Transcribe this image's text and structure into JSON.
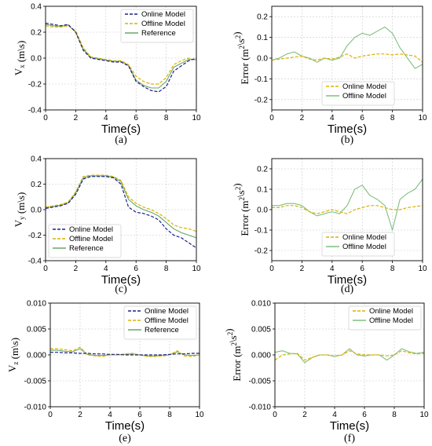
{
  "colors": {
    "online": "#1f1f8c",
    "offline": "#d9b300",
    "reference": "#6aa86a",
    "error_online": "#d9b300",
    "error_offline": "#7fbf7f"
  },
  "chart_data": [
    {
      "id": "a",
      "type": "line",
      "caption": "(a)",
      "xlabel": "Time(s)",
      "ylabel": "V_x (m\\s)",
      "xlim": [
        0,
        10
      ],
      "ylim": [
        -0.4,
        0.4
      ],
      "xticks": [
        0,
        2,
        4,
        6,
        8,
        10
      ],
      "yticks": [
        -0.4,
        -0.2,
        0.0,
        0.2,
        0.4
      ],
      "ytick_labels": [
        "-0.4",
        "-0.2",
        "0.0",
        "0.2",
        "0.4"
      ],
      "grid": true,
      "legend_position": "top-right",
      "series": [
        {
          "name": "Online Model",
          "style": "dashed",
          "color_key": "online",
          "x": [
            0,
            0.5,
            1,
            1.5,
            2,
            2.5,
            3,
            3.5,
            4,
            4.5,
            5,
            5.5,
            6,
            6.5,
            7,
            7.5,
            8,
            8.5,
            9,
            9.5,
            10
          ],
          "y": [
            0.27,
            0.26,
            0.25,
            0.26,
            0.2,
            0.06,
            0.0,
            -0.01,
            -0.02,
            -0.03,
            -0.03,
            -0.06,
            -0.18,
            -0.22,
            -0.25,
            -0.26,
            -0.22,
            -0.1,
            -0.06,
            -0.02,
            0.0
          ]
        },
        {
          "name": "Offline Model",
          "style": "dashed",
          "color_key": "offline",
          "x": [
            0,
            0.5,
            1,
            1.5,
            2,
            2.5,
            3,
            3.5,
            4,
            4.5,
            5,
            5.5,
            6,
            6.5,
            7,
            7.5,
            8,
            8.5,
            9,
            9.5,
            10
          ],
          "y": [
            0.25,
            0.24,
            0.24,
            0.25,
            0.21,
            0.08,
            0.01,
            0.0,
            -0.01,
            -0.02,
            -0.02,
            -0.05,
            -0.14,
            -0.18,
            -0.2,
            -0.2,
            -0.15,
            -0.05,
            -0.02,
            0.0,
            -0.02
          ]
        },
        {
          "name": "Reference",
          "style": "solid",
          "color_key": "reference",
          "x": [
            0,
            0.5,
            1,
            1.5,
            2,
            2.5,
            3,
            3.5,
            4,
            4.5,
            5,
            5.5,
            6,
            6.5,
            7,
            7.5,
            8,
            8.5,
            9,
            9.5,
            10
          ],
          "y": [
            0.26,
            0.25,
            0.245,
            0.255,
            0.2,
            0.07,
            0.005,
            -0.005,
            -0.015,
            -0.025,
            -0.025,
            -0.055,
            -0.17,
            -0.21,
            -0.23,
            -0.23,
            -0.18,
            -0.07,
            -0.04,
            -0.01,
            -0.01
          ]
        }
      ]
    },
    {
      "id": "b",
      "type": "line",
      "caption": "(b)",
      "xlabel": "Time(s)",
      "ylabel": "Error (m^2\\s^2)",
      "xlim": [
        0,
        10
      ],
      "ylim": [
        -0.25,
        0.25
      ],
      "xticks": [
        0,
        2,
        4,
        6,
        8,
        10
      ],
      "yticks": [
        -0.2,
        -0.1,
        0.0,
        0.1,
        0.2
      ],
      "ytick_labels": [
        "-0.2",
        "-0.1",
        "0.0",
        "0.1",
        "0.2"
      ],
      "grid": true,
      "legend_position": "bottom-center",
      "series": [
        {
          "name": "Online Model",
          "style": "dashed",
          "color_key": "error_online",
          "x": [
            0,
            0.5,
            1,
            1.5,
            2,
            2.5,
            3,
            3.5,
            4,
            4.5,
            5,
            5.5,
            6,
            6.5,
            7,
            7.5,
            8,
            8.5,
            9,
            9.5,
            10
          ],
          "y": [
            -0.01,
            -0.005,
            0.0,
            0.005,
            0.01,
            -0.005,
            -0.01,
            0.0,
            -0.005,
            0.005,
            0.02,
            0.0,
            0.01,
            0.015,
            0.02,
            0.02,
            0.015,
            0.02,
            0.015,
            0.01,
            -0.02
          ]
        },
        {
          "name": "Offline Model",
          "style": "solid",
          "color_key": "error_offline",
          "x": [
            0,
            0.5,
            1,
            1.5,
            2,
            2.5,
            3,
            3.5,
            4,
            4.5,
            5,
            5.5,
            6,
            6.5,
            7,
            7.5,
            8,
            8.5,
            9,
            9.5,
            10
          ],
          "y": [
            -0.01,
            0.0,
            0.02,
            0.03,
            0.01,
            0.0,
            -0.02,
            0.0,
            -0.01,
            0.0,
            0.06,
            0.1,
            0.12,
            0.11,
            0.13,
            0.15,
            0.12,
            0.05,
            0.0,
            -0.05,
            -0.03
          ]
        }
      ]
    },
    {
      "id": "c",
      "type": "line",
      "caption": "(c)",
      "xlabel": "Time(s)",
      "ylabel": "V_y (m\\s)",
      "xlim": [
        0,
        10
      ],
      "ylim": [
        -0.4,
        0.4
      ],
      "xticks": [
        0,
        2,
        4,
        6,
        8,
        10
      ],
      "yticks": [
        -0.4,
        -0.2,
        0.0,
        0.2,
        0.4
      ],
      "ytick_labels": [
        "-0.4",
        "-0.2",
        "0.0",
        "0.2",
        "0.4"
      ],
      "grid": true,
      "legend_position": "bottom-left",
      "series": [
        {
          "name": "Online Model",
          "style": "dashed",
          "color_key": "online",
          "x": [
            0,
            0.5,
            1,
            1.5,
            2,
            2.5,
            3,
            3.5,
            4,
            4.5,
            5,
            5.5,
            6,
            6.5,
            7,
            7.5,
            8,
            8.5,
            9,
            9.5,
            10
          ],
          "y": [
            0.01,
            0.02,
            0.03,
            0.05,
            0.12,
            0.24,
            0.26,
            0.26,
            0.26,
            0.25,
            0.2,
            0.02,
            -0.02,
            -0.03,
            -0.05,
            -0.08,
            -0.15,
            -0.2,
            -0.22,
            -0.26,
            -0.3
          ]
        },
        {
          "name": "Offline Model",
          "style": "dashed",
          "color_key": "offline",
          "x": [
            0,
            0.5,
            1,
            1.5,
            2,
            2.5,
            3,
            3.5,
            4,
            4.5,
            5,
            5.5,
            6,
            6.5,
            7,
            7.5,
            8,
            8.5,
            9,
            9.5,
            10
          ],
          "y": [
            0.02,
            0.03,
            0.04,
            0.06,
            0.14,
            0.26,
            0.27,
            0.27,
            0.27,
            0.26,
            0.23,
            0.1,
            0.05,
            0.02,
            0.0,
            -0.03,
            -0.07,
            -0.12,
            -0.14,
            -0.15,
            -0.17
          ]
        },
        {
          "name": "Reference",
          "style": "solid",
          "color_key": "reference",
          "x": [
            0,
            0.5,
            1,
            1.5,
            2,
            2.5,
            3,
            3.5,
            4,
            4.5,
            5,
            5.5,
            6,
            6.5,
            7,
            7.5,
            8,
            8.5,
            9,
            9.5,
            10
          ],
          "y": [
            0.015,
            0.025,
            0.035,
            0.055,
            0.13,
            0.25,
            0.265,
            0.265,
            0.265,
            0.255,
            0.22,
            0.08,
            0.03,
            0.0,
            -0.02,
            -0.05,
            -0.1,
            -0.15,
            -0.18,
            -0.2,
            -0.22
          ]
        }
      ]
    },
    {
      "id": "d",
      "type": "line",
      "caption": "(d)",
      "xlabel": "Time(s)",
      "ylabel": "Error (m^2\\s^2)",
      "xlim": [
        0,
        10
      ],
      "ylim": [
        -0.25,
        0.25
      ],
      "xticks": [
        0,
        2,
        4,
        6,
        8,
        10
      ],
      "yticks": [
        -0.2,
        -0.1,
        0.0,
        0.1,
        0.2
      ],
      "ytick_labels": [
        "-0.2",
        "-0.1",
        "0.0",
        "0.1",
        "0.2"
      ],
      "grid": true,
      "legend_position": "bottom-center",
      "series": [
        {
          "name": "Online Model",
          "style": "dashed",
          "color_key": "error_online",
          "x": [
            0,
            0.5,
            1,
            1.5,
            2,
            2.5,
            3,
            3.5,
            4,
            4.5,
            5,
            5.5,
            6,
            6.5,
            7,
            7.5,
            8,
            8.5,
            9,
            9.5,
            10
          ],
          "y": [
            0.01,
            0.01,
            0.02,
            0.02,
            0.01,
            -0.01,
            -0.02,
            -0.01,
            0.0,
            -0.01,
            -0.02,
            0.0,
            0.01,
            0.02,
            0.02,
            0.01,
            0.0,
            0.0,
            0.01,
            0.015,
            0.02
          ]
        },
        {
          "name": "Offline Model",
          "style": "solid",
          "color_key": "error_offline",
          "x": [
            0,
            0.5,
            1,
            1.5,
            2,
            2.5,
            3,
            3.5,
            4,
            4.5,
            5,
            5.5,
            6,
            6.5,
            7,
            7.5,
            8,
            8.5,
            9,
            9.5,
            10
          ],
          "y": [
            0.02,
            0.02,
            0.03,
            0.03,
            0.02,
            -0.01,
            -0.03,
            -0.02,
            -0.01,
            -0.02,
            0.02,
            0.1,
            0.12,
            0.07,
            0.05,
            0.02,
            -0.1,
            0.05,
            0.08,
            0.1,
            0.15
          ]
        }
      ]
    },
    {
      "id": "e",
      "type": "line",
      "caption": "(e)",
      "xlabel": "Time(s)",
      "ylabel": "V_z (m\\s)",
      "xlim": [
        0,
        10
      ],
      "ylim": [
        -0.01,
        0.01
      ],
      "xticks": [
        0,
        2,
        4,
        6,
        8,
        10
      ],
      "yticks": [
        -0.01,
        -0.005,
        0.0,
        0.005,
        0.01
      ],
      "ytick_labels": [
        "-0.010",
        "-0.005",
        "0.000",
        "0.005",
        "0.010"
      ],
      "grid": true,
      "legend_position": "top-right",
      "series": [
        {
          "name": "Online Model",
          "style": "dashed",
          "color_key": "online",
          "x": [
            0,
            0.5,
            1,
            1.5,
            2,
            2.5,
            3,
            3.5,
            4,
            4.5,
            5,
            5.5,
            6,
            6.5,
            7,
            7.5,
            8,
            8.5,
            9,
            9.5,
            10
          ],
          "y": [
            0.0005,
            0.0005,
            0.0004,
            0.0004,
            0.0003,
            0.0003,
            0.0002,
            0.0002,
            0.0001,
            0.0001,
            0.0,
            0.0,
            0.0,
            0.0,
            0.0,
            0.0,
            0.0001,
            0.0002,
            0.0002,
            0.0003,
            0.0003
          ]
        },
        {
          "name": "Offline Model",
          "style": "dashed",
          "color_key": "offline",
          "x": [
            0,
            0.5,
            1,
            1.5,
            2,
            2.5,
            3,
            3.5,
            4,
            4.5,
            5,
            5.5,
            6,
            6.5,
            7,
            7.5,
            8,
            8.5,
            9,
            9.5,
            10
          ],
          "y": [
            0.0012,
            0.0012,
            0.001,
            0.0008,
            0.0015,
            0.0,
            -0.0002,
            -0.0003,
            0.0,
            0.0,
            0.0002,
            0.0003,
            0.0,
            -0.0003,
            -0.0003,
            -0.0002,
            0.0,
            0.0008,
            -0.0002,
            -0.0003,
            0.0
          ]
        },
        {
          "name": "Reference",
          "style": "solid",
          "color_key": "reference",
          "x": [
            0,
            0.5,
            1,
            1.5,
            2,
            2.5,
            3,
            3.5,
            4,
            4.5,
            5,
            5.5,
            6,
            6.5,
            7,
            7.5,
            8,
            8.5,
            9,
            9.5,
            10
          ],
          "y": [
            0.0009,
            0.0009,
            0.0007,
            0.0006,
            0.0012,
            0.0001,
            -0.0001,
            -0.0001,
            0.0,
            0.0,
            0.0001,
            0.0002,
            0.0,
            -0.0002,
            -0.0002,
            -0.0001,
            0.0,
            0.0006,
            0.0,
            -0.0001,
            0.0
          ]
        }
      ]
    },
    {
      "id": "f",
      "type": "line",
      "caption": "(f)",
      "xlabel": "Time(s)",
      "ylabel": "Error (m^2\\s^2)",
      "xlim": [
        0,
        10
      ],
      "ylim": [
        -0.01,
        0.01
      ],
      "xticks": [
        0,
        2,
        4,
        6,
        8,
        10
      ],
      "yticks": [
        -0.01,
        -0.005,
        0.0,
        0.005,
        0.01
      ],
      "ytick_labels": [
        "-0.010",
        "-0.005",
        "0.000",
        "0.005",
        "0.010"
      ],
      "grid": true,
      "legend_position": "top-right",
      "series": [
        {
          "name": "Online Model",
          "style": "dashed",
          "color_key": "error_online",
          "x": [
            0,
            0.5,
            1,
            1.5,
            2,
            2.5,
            3,
            3.5,
            4,
            4.5,
            5,
            5.5,
            6,
            6.5,
            7,
            7.5,
            8,
            8.5,
            9,
            9.5,
            10
          ],
          "y": [
            -0.001,
            0.0,
            0.0002,
            0.0003,
            -0.001,
            -0.0005,
            0.0,
            0.0,
            -0.0002,
            0.0,
            0.0008,
            0.0002,
            0.0,
            0.0,
            0.0,
            -0.0002,
            0.0,
            0.0008,
            0.0004,
            0.0002,
            0.0003
          ]
        },
        {
          "name": "Offline Model",
          "style": "solid",
          "color_key": "error_offline",
          "x": [
            0,
            0.5,
            1,
            1.5,
            2,
            2.5,
            3,
            3.5,
            4,
            4.5,
            5,
            5.5,
            6,
            6.5,
            7,
            7.5,
            8,
            8.5,
            9,
            9.5,
            10
          ],
          "y": [
            0.0005,
            0.0008,
            0.0003,
            0.0002,
            -0.0015,
            -0.0005,
            0.0,
            0.0,
            -0.0003,
            0.0,
            0.0012,
            0.0,
            -0.0002,
            0.0,
            0.0,
            -0.001,
            0.0,
            0.0012,
            0.0006,
            0.0003,
            0.0005
          ]
        }
      ]
    }
  ]
}
